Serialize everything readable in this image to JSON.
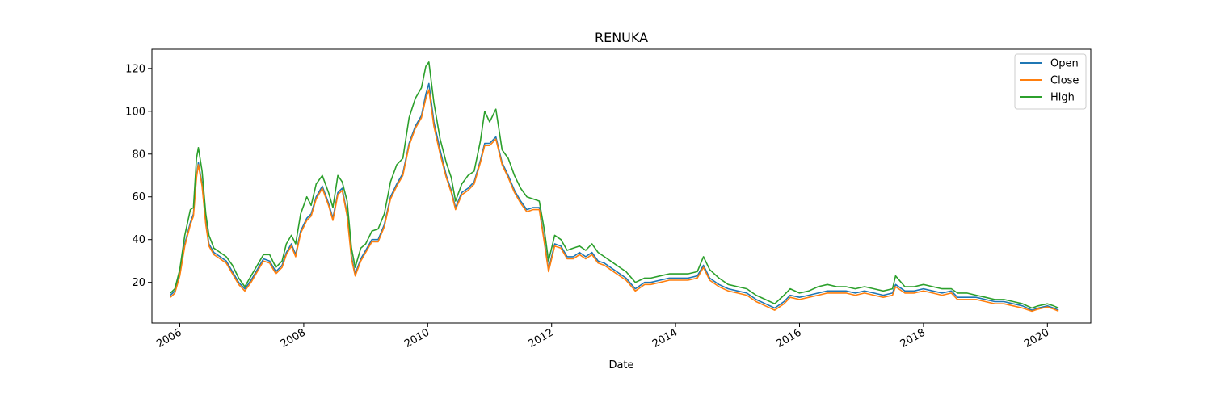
{
  "chart_data": {
    "type": "line",
    "title": "RENUKA",
    "xlabel": "Date",
    "ylabel": "",
    "xlim": [
      2005.55,
      2020.7
    ],
    "ylim": [
      1.0,
      129.0
    ],
    "x_ticks": [
      2006,
      2008,
      2010,
      2012,
      2014,
      2016,
      2018,
      2020
    ],
    "x_tick_labels": [
      "2006",
      "2008",
      "2010",
      "2012",
      "2014",
      "2016",
      "2018",
      "2020"
    ],
    "y_ticks": [
      20,
      40,
      60,
      80,
      100,
      120
    ],
    "y_tick_labels": [
      "20",
      "40",
      "60",
      "80",
      "100",
      "120"
    ],
    "grid": false,
    "legend_position": "top-right",
    "x": [
      2005.85,
      2005.92,
      2006.0,
      2006.08,
      2006.17,
      2006.22,
      2006.27,
      2006.3,
      2006.36,
      2006.42,
      2006.47,
      2006.55,
      2006.65,
      2006.75,
      2006.85,
      2006.95,
      2007.05,
      2007.15,
      2007.25,
      2007.35,
      2007.45,
      2007.55,
      2007.65,
      2007.72,
      2007.8,
      2007.87,
      2007.95,
      2008.05,
      2008.12,
      2008.2,
      2008.3,
      2008.4,
      2008.47,
      2008.55,
      2008.62,
      2008.7,
      2008.77,
      2008.83,
      2008.92,
      2009.0,
      2009.1,
      2009.2,
      2009.3,
      2009.4,
      2009.5,
      2009.6,
      2009.7,
      2009.8,
      2009.9,
      2009.97,
      2010.02,
      2010.1,
      2010.2,
      2010.3,
      2010.38,
      2010.45,
      2010.55,
      2010.65,
      2010.75,
      2010.85,
      2010.92,
      2011.0,
      2011.1,
      2011.2,
      2011.3,
      2011.4,
      2011.5,
      2011.6,
      2011.7,
      2011.8,
      2011.88,
      2011.95,
      2012.05,
      2012.15,
      2012.25,
      2012.35,
      2012.45,
      2012.55,
      2012.65,
      2012.75,
      2012.85,
      2012.95,
      2013.05,
      2013.2,
      2013.35,
      2013.5,
      2013.6,
      2013.75,
      2013.9,
      2014.05,
      2014.2,
      2014.35,
      2014.45,
      2014.55,
      2014.7,
      2014.85,
      2015.0,
      2015.15,
      2015.3,
      2015.45,
      2015.6,
      2015.75,
      2015.85,
      2016.0,
      2016.15,
      2016.3,
      2016.45,
      2016.6,
      2016.75,
      2016.9,
      2017.05,
      2017.2,
      2017.35,
      2017.5,
      2017.55,
      2017.7,
      2017.85,
      2018.0,
      2018.15,
      2018.3,
      2018.45,
      2018.55,
      2018.7,
      2018.85,
      2019.0,
      2019.15,
      2019.3,
      2019.45,
      2019.6,
      2019.75,
      2019.85,
      2020.0,
      2020.1,
      2020.18
    ],
    "series": [
      {
        "name": "Open",
        "color": "#1f77b4",
        "values": [
          14,
          16,
          24,
          38,
          48,
          52,
          70,
          76,
          66,
          48,
          38,
          34,
          32,
          30,
          25,
          20,
          17,
          21,
          26,
          31,
          30,
          25,
          28,
          34,
          38,
          33,
          44,
          50,
          52,
          60,
          65,
          57,
          50,
          62,
          64,
          52,
          32,
          24,
          31,
          35,
          40,
          40,
          47,
          60,
          66,
          71,
          85,
          93,
          98,
          108,
          113,
          95,
          82,
          70,
          63,
          55,
          62,
          64,
          67,
          77,
          85,
          85,
          88,
          76,
          70,
          63,
          58,
          54,
          55,
          55,
          40,
          26,
          38,
          37,
          32,
          32,
          34,
          32,
          34,
          30,
          29,
          27,
          25,
          22,
          17,
          20,
          20,
          21,
          22,
          22,
          22,
          23,
          28,
          22,
          19,
          17,
          16,
          15,
          12,
          10,
          8,
          11,
          14,
          13,
          14,
          15,
          16,
          16,
          16,
          15,
          16,
          15,
          14,
          15,
          19,
          16,
          16,
          17,
          16,
          15,
          16,
          13,
          13,
          13,
          12,
          11,
          11,
          10,
          9,
          7,
          8,
          9,
          8,
          7
        ]
      },
      {
        "name": "Close",
        "color": "#ff7f0e",
        "values": [
          13,
          15,
          23,
          37,
          47,
          51,
          69,
          75,
          65,
          47,
          37,
          33,
          31,
          29,
          24,
          19,
          16,
          20,
          25,
          30,
          29,
          24,
          27,
          33,
          37,
          32,
          43,
          49,
          51,
          59,
          64,
          56,
          49,
          61,
          63,
          51,
          31,
          23,
          30,
          34,
          39,
          39,
          46,
          59,
          65,
          70,
          84,
          92,
          97,
          106,
          110,
          93,
          80,
          69,
          62,
          54,
          61,
          63,
          66,
          76,
          84,
          84,
          87,
          75,
          69,
          62,
          57,
          53,
          54,
          54,
          39,
          25,
          37,
          36,
          31,
          31,
          33,
          31,
          33,
          29,
          28,
          26,
          24,
          21,
          16,
          19,
          19,
          20,
          21,
          21,
          21,
          22,
          27,
          21,
          18,
          16,
          15,
          14,
          11,
          9,
          7,
          10,
          13,
          12,
          13,
          14,
          15,
          15,
          15,
          14,
          15,
          14,
          13,
          14,
          18,
          15,
          15,
          16,
          15,
          14,
          15,
          12,
          12,
          12,
          11,
          10,
          10,
          9,
          8,
          6.5,
          7.5,
          8.5,
          7.5,
          6.5
        ]
      },
      {
        "name": "High",
        "color": "#2ca02c",
        "values": [
          15,
          17,
          26,
          42,
          54,
          55,
          78,
          83,
          72,
          52,
          42,
          36,
          34,
          32,
          28,
          22,
          18,
          23,
          28,
          33,
          33,
          27,
          30,
          38,
          42,
          38,
          52,
          60,
          56,
          66,
          70,
          62,
          55,
          70,
          67,
          58,
          36,
          27,
          36,
          38,
          44,
          45,
          52,
          67,
          75,
          78,
          97,
          106,
          111,
          121,
          123,
          104,
          87,
          76,
          69,
          58,
          66,
          70,
          72,
          86,
          100,
          95,
          101,
          82,
          78,
          70,
          64,
          60,
          59,
          58,
          45,
          30,
          42,
          40,
          35,
          36,
          37,
          35,
          38,
          34,
          32,
          30,
          28,
          25,
          20,
          22,
          22,
          23,
          24,
          24,
          24,
          25,
          32,
          26,
          22,
          19,
          18,
          17,
          14,
          12,
          10,
          14,
          17,
          15,
          16,
          18,
          19,
          18,
          18,
          17,
          18,
          17,
          16,
          17,
          23,
          18,
          18,
          19,
          18,
          17,
          17,
          15,
          15,
          14,
          13,
          12,
          12,
          11,
          10,
          8,
          9,
          10,
          9,
          8
        ]
      }
    ]
  }
}
